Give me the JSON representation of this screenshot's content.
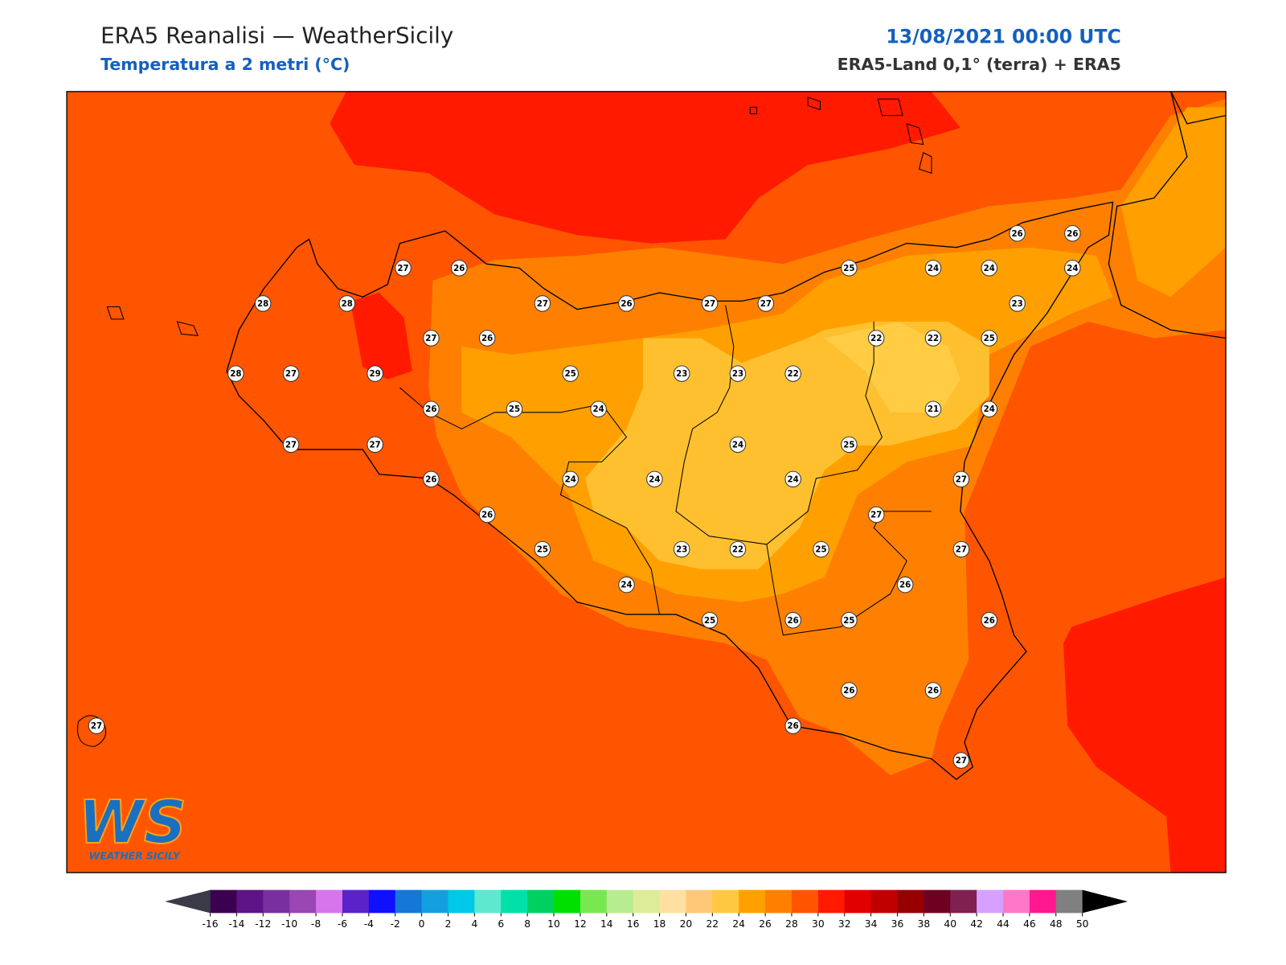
{
  "header": {
    "title": "ERA5 Reanalisi — WeatherSicily",
    "subtitle": "Temperatura a 2 metri (°C)",
    "date": "13/08/2021 00:00 UTC",
    "source": "ERA5-Land 0,1° (terra) + ERA5"
  },
  "logo": {
    "mark": "WS",
    "text": "WEATHER SICILY"
  },
  "stations": [
    27,
    26,
    28,
    28,
    27,
    26,
    27,
    27,
    25,
    24,
    24,
    24,
    26,
    26,
    23,
    27,
    26,
    22,
    22,
    25,
    28,
    27,
    29,
    25,
    23,
    23,
    22,
    26,
    25,
    24,
    21,
    24,
    27,
    27,
    24,
    25,
    26,
    24,
    24,
    24,
    27,
    26,
    27,
    25,
    23,
    22,
    25,
    27,
    24,
    26,
    25,
    26,
    25,
    26,
    26,
    26,
    26,
    27,
    27
  ],
  "colorbar": {
    "ticks": [
      -16,
      -14,
      -12,
      -10,
      -8,
      -6,
      -4,
      -2,
      0,
      2,
      4,
      6,
      8,
      10,
      12,
      14,
      16,
      18,
      20,
      22,
      24,
      26,
      28,
      30,
      32,
      34,
      36,
      38,
      40,
      42,
      44,
      46,
      48,
      50
    ],
    "colors": [
      "#3c0050",
      "#5e1487",
      "#7a2fa0",
      "#9a46b5",
      "#d675ec",
      "#5a22c8",
      "#1010ff",
      "#1478d8",
      "#14a0e0",
      "#00c8e8",
      "#5ee8d0",
      "#00e0a8",
      "#00d060",
      "#00e000",
      "#78e850",
      "#b8ec90",
      "#dcec98",
      "#ffe0a0",
      "#ffc878",
      "#ffc840",
      "#ffa000",
      "#ff8000",
      "#ff5500",
      "#ff1a00",
      "#e00000",
      "#c00000",
      "#960000",
      "#700020",
      "#802050",
      "#d6a0ff",
      "#ff78c8",
      "#ff1890",
      "#808080",
      "#404040"
    ],
    "under_color": "#3a3a48",
    "over_color": "#000000"
  }
}
